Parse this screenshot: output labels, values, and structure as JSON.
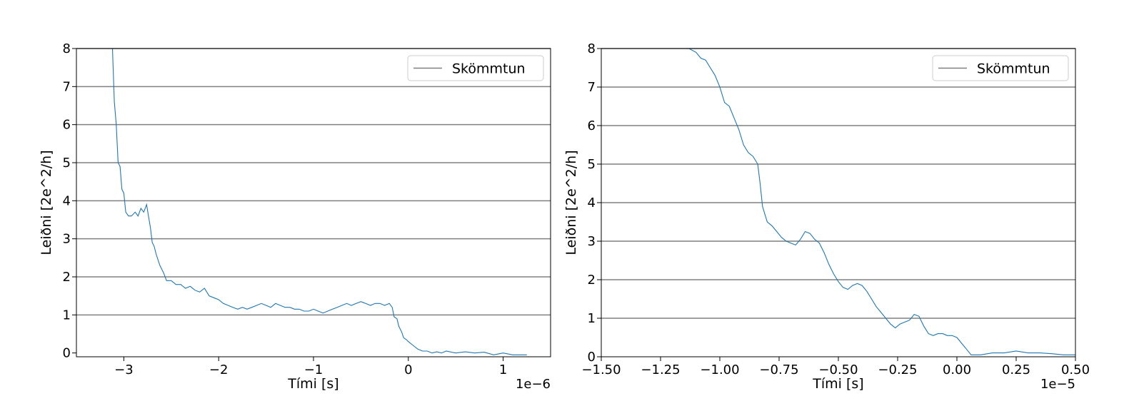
{
  "colors": {
    "series": "#1f77b4",
    "hline": "#808080",
    "axes": "#000000"
  },
  "chart_data": [
    {
      "type": "line",
      "xlabel": "Tími [s]",
      "ylabel": "Leiðni [2e^2/h]",
      "x_offset_label": "1e−6",
      "xlim": [
        -3.5,
        1.5
      ],
      "ylim": [
        -0.1,
        8
      ],
      "x_ticks": [
        -3,
        -2,
        -1,
        0,
        1
      ],
      "x_tick_labels": [
        "−3",
        "−2",
        "−1",
        "0",
        "1"
      ],
      "y_ticks": [
        0,
        1,
        2,
        3,
        4,
        5,
        6,
        7,
        8
      ],
      "y_tick_labels": [
        "0",
        "1",
        "2",
        "3",
        "4",
        "5",
        "6",
        "7",
        "8"
      ],
      "legend": {
        "label": "Skömmtun",
        "position": "top-right"
      },
      "hlines": [
        1,
        2,
        3,
        4,
        5,
        6,
        7,
        8
      ],
      "grid": false,
      "series": [
        {
          "x": [
            -3.12,
            -3.1,
            -3.08,
            -3.06,
            -3.04,
            -3.02,
            -3.0,
            -2.98,
            -2.95,
            -2.92,
            -2.88,
            -2.85,
            -2.82,
            -2.79,
            -2.76,
            -2.74,
            -2.72,
            -2.7,
            -2.68,
            -2.66,
            -2.62,
            -2.58,
            -2.55,
            -2.5,
            -2.45,
            -2.4,
            -2.35,
            -2.3,
            -2.25,
            -2.2,
            -2.15,
            -2.1,
            -2.05,
            -2.0,
            -1.95,
            -1.9,
            -1.85,
            -1.8,
            -1.75,
            -1.7,
            -1.65,
            -1.6,
            -1.55,
            -1.5,
            -1.45,
            -1.4,
            -1.35,
            -1.3,
            -1.25,
            -1.2,
            -1.15,
            -1.1,
            -1.05,
            -1.0,
            -0.95,
            -0.9,
            -0.85,
            -0.8,
            -0.75,
            -0.7,
            -0.65,
            -0.6,
            -0.55,
            -0.5,
            -0.45,
            -0.4,
            -0.35,
            -0.3,
            -0.25,
            -0.2,
            -0.17,
            -0.15,
            -0.12,
            -0.1,
            -0.07,
            -0.05,
            -0.02,
            0.0,
            0.05,
            0.1,
            0.15,
            0.2,
            0.25,
            0.3,
            0.35,
            0.4,
            0.5,
            0.6,
            0.7,
            0.8,
            0.9,
            1.0,
            1.1,
            1.25
          ],
          "y": [
            8.0,
            6.6,
            6.0,
            5.0,
            4.9,
            4.3,
            4.2,
            3.7,
            3.6,
            3.6,
            3.7,
            3.6,
            3.8,
            3.7,
            3.9,
            3.6,
            3.3,
            2.9,
            2.8,
            2.6,
            2.3,
            2.1,
            1.9,
            1.9,
            1.8,
            1.8,
            1.7,
            1.75,
            1.65,
            1.6,
            1.7,
            1.5,
            1.45,
            1.4,
            1.3,
            1.25,
            1.2,
            1.15,
            1.2,
            1.15,
            1.2,
            1.25,
            1.3,
            1.25,
            1.2,
            1.3,
            1.25,
            1.2,
            1.2,
            1.15,
            1.15,
            1.1,
            1.1,
            1.15,
            1.1,
            1.05,
            1.1,
            1.15,
            1.2,
            1.25,
            1.3,
            1.25,
            1.3,
            1.35,
            1.3,
            1.25,
            1.3,
            1.3,
            1.25,
            1.3,
            1.2,
            0.95,
            0.9,
            0.7,
            0.55,
            0.4,
            0.35,
            0.3,
            0.2,
            0.1,
            0.05,
            0.05,
            0.0,
            0.03,
            0.0,
            0.05,
            0.0,
            0.03,
            0.0,
            0.02,
            -0.05,
            0.0,
            -0.05,
            -0.05
          ]
        }
      ]
    },
    {
      "type": "line",
      "xlabel": "Tími [s]",
      "ylabel": "Leiðni [2e^2/h]",
      "x_offset_label": "1e−5",
      "xlim": [
        -1.5,
        0.5
      ],
      "ylim": [
        0,
        8
      ],
      "x_ticks": [
        -1.5,
        -1.25,
        -1.0,
        -0.75,
        -0.5,
        -0.25,
        0.0,
        0.25,
        0.5
      ],
      "x_tick_labels": [
        "−1.50",
        "−1.25",
        "−1.00",
        "−0.75",
        "−0.50",
        "−0.25",
        "0.00",
        "0.25",
        "0.50"
      ],
      "y_ticks": [
        0,
        1,
        2,
        3,
        4,
        5,
        6,
        7,
        8
      ],
      "y_tick_labels": [
        "0",
        "1",
        "2",
        "3",
        "4",
        "5",
        "6",
        "7",
        "8"
      ],
      "legend": {
        "label": "Skömmtun",
        "position": "top-right"
      },
      "hlines": [
        1,
        2,
        3,
        4,
        5,
        6,
        7,
        8
      ],
      "grid": false,
      "series": [
        {
          "x": [
            -1.13,
            -1.1,
            -1.08,
            -1.06,
            -1.04,
            -1.02,
            -1.0,
            -0.98,
            -0.96,
            -0.94,
            -0.92,
            -0.9,
            -0.88,
            -0.86,
            -0.84,
            -0.83,
            -0.82,
            -0.8,
            -0.78,
            -0.76,
            -0.74,
            -0.72,
            -0.7,
            -0.68,
            -0.66,
            -0.64,
            -0.62,
            -0.6,
            -0.58,
            -0.56,
            -0.54,
            -0.52,
            -0.5,
            -0.48,
            -0.46,
            -0.44,
            -0.42,
            -0.4,
            -0.38,
            -0.36,
            -0.34,
            -0.32,
            -0.3,
            -0.28,
            -0.26,
            -0.24,
            -0.22,
            -0.2,
            -0.18,
            -0.16,
            -0.14,
            -0.12,
            -0.1,
            -0.08,
            -0.06,
            -0.04,
            -0.02,
            0.0,
            0.02,
            0.04,
            0.06,
            0.1,
            0.15,
            0.2,
            0.25,
            0.3,
            0.35,
            0.4,
            0.45,
            0.5
          ],
          "y": [
            8.0,
            7.9,
            7.75,
            7.7,
            7.5,
            7.3,
            7.0,
            6.6,
            6.5,
            6.2,
            5.9,
            5.5,
            5.3,
            5.2,
            5.0,
            4.5,
            3.9,
            3.5,
            3.4,
            3.25,
            3.1,
            3.0,
            2.95,
            2.9,
            3.05,
            3.25,
            3.2,
            3.05,
            2.95,
            2.7,
            2.4,
            2.15,
            1.95,
            1.8,
            1.75,
            1.85,
            1.9,
            1.85,
            1.7,
            1.5,
            1.3,
            1.15,
            1.0,
            0.85,
            0.75,
            0.85,
            0.9,
            0.95,
            1.1,
            1.05,
            0.8,
            0.6,
            0.55,
            0.6,
            0.6,
            0.55,
            0.55,
            0.5,
            0.35,
            0.2,
            0.05,
            0.05,
            0.1,
            0.1,
            0.15,
            0.1,
            0.1,
            0.08,
            0.05,
            0.05
          ]
        }
      ]
    }
  ]
}
